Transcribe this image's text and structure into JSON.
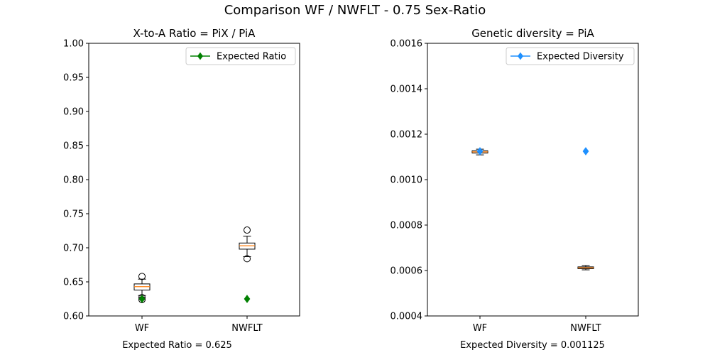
{
  "figure": {
    "suptitle": "Comparison WF / NWFLT - 0.75 Sex-Ratio"
  },
  "chart_data": [
    {
      "type": "box",
      "title": "X-to-A Ratio = PiX / PiA",
      "xlabel": "Expected Ratio = 0.625",
      "ylabel": "",
      "categories": [
        "WF",
        "NWFLT"
      ],
      "ylim": [
        0.6,
        1.0
      ],
      "yticks": [
        0.6,
        0.65,
        0.7,
        0.75,
        0.8,
        0.85,
        0.9,
        0.95,
        1.0
      ],
      "ytick_labels": [
        "0.60",
        "0.65",
        "0.70",
        "0.75",
        "0.80",
        "0.85",
        "0.90",
        "0.95",
        "1.00"
      ],
      "boxes": [
        {
          "category": "WF",
          "whisker_low": 0.63,
          "q1": 0.638,
          "median": 0.643,
          "q3": 0.647,
          "whisker_high": 0.654,
          "outliers": [
            0.658,
            0.627,
            0.624
          ]
        },
        {
          "category": "NWFLT",
          "whisker_low": 0.687,
          "q1": 0.698,
          "median": 0.703,
          "q3": 0.707,
          "whisker_high": 0.717,
          "outliers": [
            0.726,
            0.684
          ]
        }
      ],
      "expected": {
        "name": "Expected Ratio",
        "color": "#008000",
        "marker": "diamond",
        "values": [
          0.625,
          0.625
        ]
      },
      "legend": {
        "position": "upper-right",
        "entries": [
          "Expected Ratio"
        ]
      },
      "grid": false
    },
    {
      "type": "box",
      "title": "Genetic diversity = PiA",
      "xlabel": "Expected Diversity = 0.001125",
      "ylabel": "",
      "categories": [
        "WF",
        "NWFLT"
      ],
      "ylim": [
        0.0004,
        0.0016
      ],
      "yticks": [
        0.0004,
        0.0006,
        0.0008,
        0.001,
        0.0012,
        0.0014,
        0.0016
      ],
      "ytick_labels": [
        "0.0004",
        "0.0006",
        "0.0008",
        "0.0010",
        "0.0012",
        "0.0014",
        "0.0016"
      ],
      "boxes": [
        {
          "category": "WF",
          "whisker_low": 0.001109,
          "q1": 0.001117,
          "median": 0.001122,
          "q3": 0.001127,
          "whisker_high": 0.001134,
          "outliers": []
        },
        {
          "category": "NWFLT",
          "whisker_low": 0.000603,
          "q1": 0.000608,
          "median": 0.000612,
          "q3": 0.000616,
          "whisker_high": 0.000622,
          "outliers": []
        }
      ],
      "expected": {
        "name": "Expected Diversity",
        "color": "#1e90ff",
        "marker": "diamond",
        "values": [
          0.001125,
          0.001125
        ]
      },
      "legend": {
        "position": "upper-right",
        "entries": [
          "Expected Diversity"
        ]
      },
      "grid": false
    }
  ],
  "colors": {
    "box_face": "#ffffff",
    "box_edge": "#000000",
    "median": "#ff7f0e",
    "axis": "#000000"
  }
}
